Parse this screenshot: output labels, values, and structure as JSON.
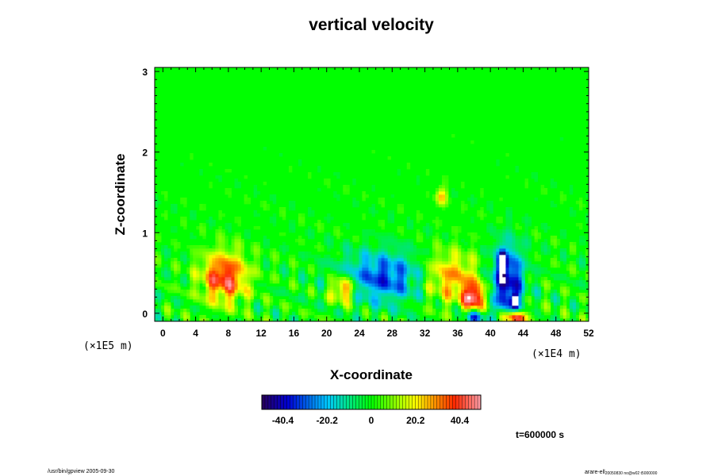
{
  "chart_data": {
    "type": "heatmap",
    "title": "vertical velocity",
    "xlabel": "X-coordinate",
    "ylabel": "Z-coordinate",
    "x_unit": "(×1E4 m)",
    "y_unit": "(×1E5 m)",
    "xlim": [
      -1,
      52
    ],
    "ylim": [
      -0.1,
      3.05
    ],
    "x_ticks": [
      "0",
      "4",
      "8",
      "12",
      "16",
      "20",
      "24",
      "28",
      "32",
      "36",
      "40",
      "44",
      "48",
      "52"
    ],
    "x_tick_values": [
      0,
      4,
      8,
      12,
      16,
      20,
      24,
      28,
      32,
      36,
      40,
      44,
      48,
      52
    ],
    "y_ticks": [
      "0",
      "1",
      "2",
      "3"
    ],
    "y_tick_values": [
      0,
      1,
      2,
      3
    ],
    "colorbar": {
      "range": [
        -50,
        50
      ],
      "ticks": [
        "-40.4",
        "-20.2",
        "0",
        "20.2",
        "40.4"
      ],
      "tick_values": [
        -40.4,
        -20.2,
        0,
        20.2,
        40.4
      ]
    },
    "features": [
      {
        "x": 7.5,
        "z": 0.45,
        "value": 42,
        "sx": 2.0,
        "sz": 0.22
      },
      {
        "x": 22.0,
        "z": 0.3,
        "value": 38,
        "sx": 1.1,
        "sz": 0.12
      },
      {
        "x": 27.0,
        "z": 0.45,
        "value": -32,
        "sx": 3.8,
        "sz": 0.22
      },
      {
        "x": 35.0,
        "z": 0.45,
        "value": 30,
        "sx": 2.5,
        "sz": 0.22
      },
      {
        "x": 38.0,
        "z": 0.2,
        "value": 45,
        "sx": 1.0,
        "sz": 0.12
      },
      {
        "x": 42.0,
        "z": 0.4,
        "value": -45,
        "sx": 1.4,
        "sz": 0.3
      },
      {
        "x": 41.5,
        "z": 0.65,
        "value": -52,
        "sx": 0.3,
        "sz": 0.08
      },
      {
        "x": 43.0,
        "z": 0.15,
        "value": -52,
        "sx": 0.3,
        "sz": 0.06
      },
      {
        "x": 34.0,
        "z": 1.45,
        "value": 25,
        "sx": 0.5,
        "sz": 0.08
      },
      {
        "x": 38.0,
        "z": -0.05,
        "value": -30,
        "sx": 1.0,
        "sz": 0.06
      },
      {
        "x": 43.0,
        "z": -0.05,
        "value": 48,
        "sx": 1.2,
        "sz": 0.06
      }
    ],
    "time_label": "t=600000 s"
  },
  "footer": {
    "left": "/usr/bin/gpview 2005-09-30",
    "right": "arare-ell",
    "right_sub": "20050830 no@w02 t5000000"
  }
}
